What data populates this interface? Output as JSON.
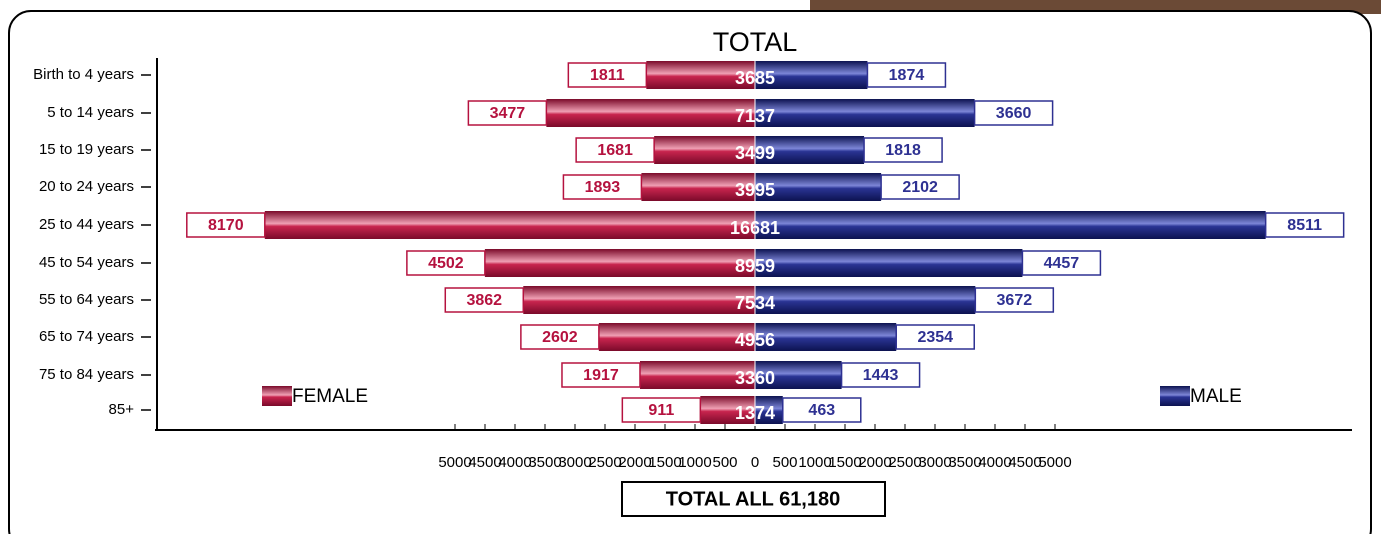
{
  "chart_data": {
    "type": "pyramid",
    "title": "TOTAL",
    "categories": [
      "Birth to 4 years",
      "5 to 14 years",
      "15 to 19 years",
      "20 to 24 years",
      "25 to 44 years",
      "45 to 54 years",
      "55 to 64 years",
      "65 to 74 years",
      "75 to 84 years",
      "85+"
    ],
    "series": [
      {
        "name": "FEMALE",
        "color": "#b5123f",
        "values": [
          1811,
          3477,
          1681,
          1893,
          8170,
          4502,
          3862,
          2602,
          1917,
          911
        ]
      },
      {
        "name": "MALE",
        "color": "#2e3192",
        "values": [
          1874,
          3660,
          1818,
          2102,
          8511,
          4457,
          3672,
          2354,
          1443,
          463
        ]
      }
    ],
    "totals": [
      3685,
      7137,
      3499,
      3995,
      16681,
      8959,
      7534,
      4956,
      3360,
      1374
    ],
    "xlim": [
      0,
      9000
    ],
    "xticks": [
      0,
      500,
      1000,
      1500,
      2000,
      2500,
      3000,
      3500,
      4000,
      4500,
      5000
    ],
    "total_label": "TOTAL ALL 61,180"
  }
}
